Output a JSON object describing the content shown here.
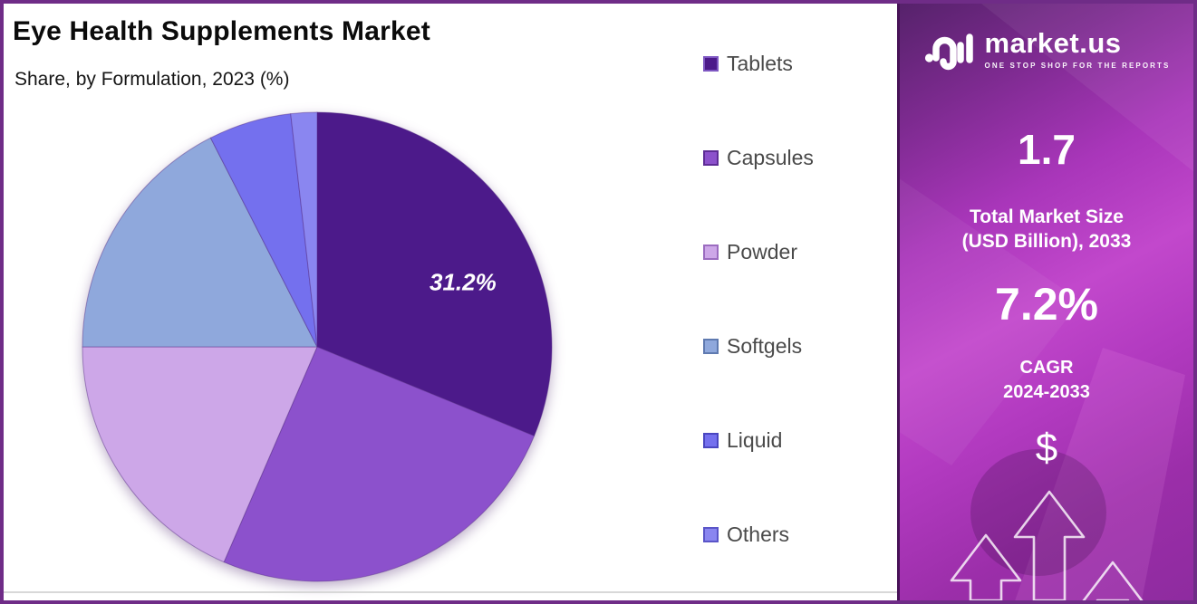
{
  "frame": {
    "border_color": "#6f2c87",
    "background": "#ffffff"
  },
  "chart": {
    "title": "Eye Health Supplements Market",
    "subtitle": "Share, by Formulation, 2023 (%)"
  },
  "chart_data": {
    "type": "pie",
    "title": "Eye Health Supplements Market",
    "subtitle": "Share, by Formulation, 2023 (%)",
    "unit": "%",
    "categories": [
      "Tablets",
      "Capsules",
      "Powder",
      "Softgels",
      "Liquid",
      "Others"
    ],
    "values": [
      31.2,
      25.3,
      18.5,
      17.5,
      5.7,
      1.8
    ],
    "colors": [
      "#4c1a8a",
      "#8c51cc",
      "#cda7e8",
      "#8fa8dc",
      "#7470ee",
      "#8a86f0"
    ],
    "swatch_borders": [
      "#7e57c2",
      "#5e2d96",
      "#9b6cc0",
      "#5f7ab0",
      "#4a46c0",
      "#5a55c8"
    ],
    "start_angle_deg": 0,
    "direction": "clockwise",
    "legend_position": "right",
    "slice_label": {
      "category": "Tablets",
      "text": "31.2%"
    }
  },
  "sidebar": {
    "brand": "market.us",
    "tagline": "ONE STOP SHOP FOR THE REPORTS",
    "market_size": {
      "value": "1.7",
      "label_line1": "Total Market Size",
      "label_line2": "(USD Billion), 2033"
    },
    "cagr": {
      "value": "7.2%",
      "label_line1": "CAGR",
      "label_line2": "2024-2033"
    },
    "dollar_symbol": "$",
    "colors": {
      "gradient_top": "#56226b",
      "gradient_mid": "#c248cc",
      "gradient_bottom": "#8e2b9f",
      "arrow_outline": "#ffffff"
    }
  }
}
